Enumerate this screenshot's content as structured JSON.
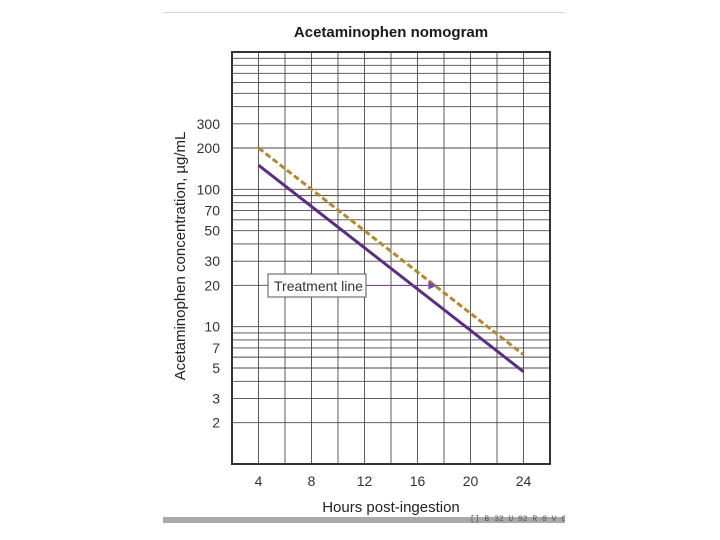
{
  "chart_data": {
    "type": "line",
    "title": "Acetaminophen nomogram",
    "xlabel": "Hours post-ingestion",
    "ylabel": "Acetaminophen concentration, µg/mL",
    "xlim": [
      2,
      26
    ],
    "ylim": [
      1,
      1000
    ],
    "y_scale": "log",
    "grid": true,
    "x_ticks": [
      4,
      8,
      12,
      16,
      20,
      24
    ],
    "y_ticks": [
      2,
      3,
      5,
      7,
      10,
      20,
      30,
      50,
      70,
      100,
      200,
      300
    ],
    "series": [
      {
        "x": [
          4,
          24
        ],
        "y": [
          150,
          4.7
        ],
        "style": "solid",
        "color": "#5a2d82"
      },
      {
        "x": [
          4,
          24
        ],
        "y": [
          200,
          6.25
        ],
        "style": "dashed",
        "color": "#b8862b"
      }
    ],
    "annotations": [
      {
        "text": "Treatment line",
        "points_to": {
          "x": 17.5,
          "y": 15
        }
      }
    ]
  },
  "footer": {
    "code": "[] B 32 U 92 R 0 V 0"
  }
}
